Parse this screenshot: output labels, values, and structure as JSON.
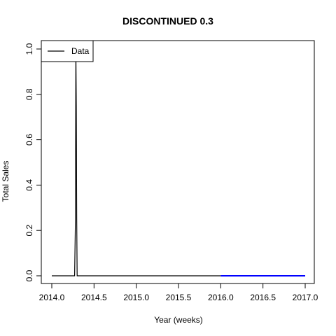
{
  "chart_data": {
    "type": "line",
    "title": "DISCONTINUED 0.3",
    "xlabel": "Year (weeks)",
    "ylabel": "Total Sales",
    "xlim": [
      2014.0,
      2017.0
    ],
    "ylim": [
      0.0,
      1.0
    ],
    "x_ticks": [
      "2014.0",
      "2014.5",
      "2015.0",
      "2015.5",
      "2016.0",
      "2016.5",
      "2017.0"
    ],
    "y_ticks": [
      "0.0",
      "0.2",
      "0.4",
      "0.6",
      "0.8",
      "1.0"
    ],
    "legend": {
      "position": "top-left",
      "entries": [
        "Data"
      ]
    },
    "series": [
      {
        "name": "Data",
        "color": "#000000",
        "points": [
          [
            2014.0,
            0
          ],
          [
            2014.27,
            0
          ],
          [
            2014.28,
            0.25
          ],
          [
            2014.285,
            1.0
          ],
          [
            2014.29,
            0.75
          ],
          [
            2014.295,
            0.25
          ],
          [
            2014.3,
            0
          ],
          [
            2016.0,
            0
          ]
        ]
      },
      {
        "color": "#0000ff",
        "points": [
          [
            2016.0,
            0
          ],
          [
            2017.0,
            0
          ]
        ]
      }
    ]
  }
}
